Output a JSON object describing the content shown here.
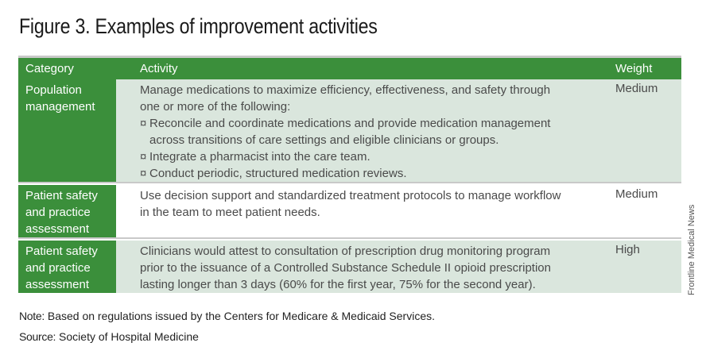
{
  "title": "Figure 3. Examples of improvement activities",
  "table": {
    "headers": {
      "category": "Category",
      "activity": "Activity",
      "weight": "Weight"
    },
    "rows": [
      {
        "category": [
          "Population",
          "management"
        ],
        "activity_intro": [
          "Manage medications to maximize efficiency, effectiveness, and safety through",
          "one or more of the following:"
        ],
        "bullets": [
          [
            "Reconcile and coordinate medications and provide medication management",
            "across transitions of care settings and eligible clinicians or groups."
          ],
          [
            "Integrate a pharmacist into the care team."
          ],
          [
            "Conduct periodic, structured medication reviews."
          ]
        ],
        "bullet_symbol": "¤",
        "weight": "Medium"
      },
      {
        "category": [
          "Patient safety",
          "and practice",
          "assessment"
        ],
        "activity_intro": [
          "Use decision support and standardized treatment protocols to manage workflow",
          "in the team to meet patient needs."
        ],
        "weight": "Medium"
      },
      {
        "category": [
          "Patient safety",
          "and practice",
          "assessment"
        ],
        "activity_intro": [
          "Clinicians would attest to consultation of prescription drug monitoring program",
          "prior to the issuance of a Controlled Substance Schedule II opioid prescription",
          "lasting longer than 3 days (60% for the first year, 75% for the second year)."
        ],
        "weight": "High"
      }
    ]
  },
  "note": {
    "label": "Note:",
    "text": " Based on regulations issued by the Centers for Medicare & Medicaid Services."
  },
  "source": {
    "label": "Source:",
    "text": " Society of Hospital Medicine"
  },
  "credit": "Frontline Medical News",
  "colors": {
    "header_green": "#3b8f3b",
    "row_shade": "#dae6dd"
  }
}
